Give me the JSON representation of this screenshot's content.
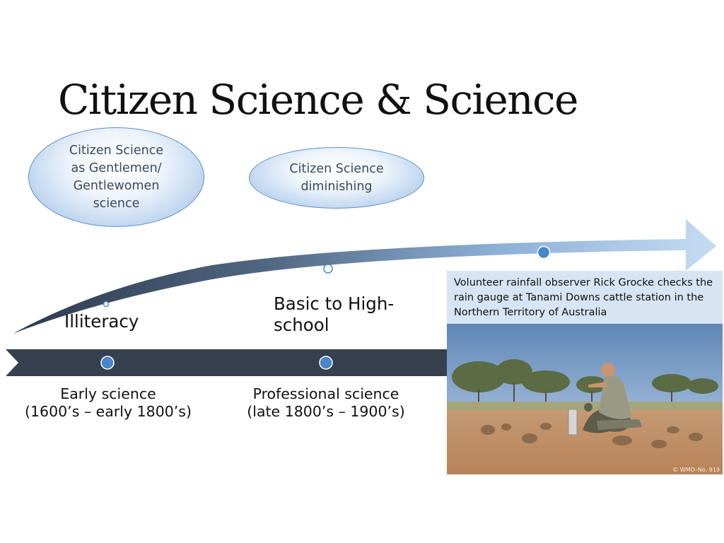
{
  "slide": {
    "title": "Citizen Science & Science",
    "bubbles": [
      {
        "line1": "Citizen Science",
        "line2": "as Gentlemen/",
        "line3": "Gentlewomen",
        "line4": "science"
      },
      {
        "line1": "Citizen Science",
        "line2": "diminishing"
      }
    ],
    "literacy_levels": [
      "Illiteracy",
      "Basic to High-school"
    ],
    "eras": [
      {
        "name": "Early science",
        "period": "(1600’s – early 1800’s)"
      },
      {
        "name": "Professional science",
        "period": "(late 1800’s – 1900’s)"
      }
    ],
    "photo": {
      "caption": "Volunteer rainfall observer Rick Grocke checks the rain gauge at Tanami Downs cattle station in the Northern Territory of Australia",
      "credit": "© WMO–No. 919"
    }
  },
  "colors": {
    "timeline": "#36404f",
    "marker": "#4a86c8",
    "arrow_light": "#c5dcf2",
    "arrow_dark": "#2d3a4d"
  }
}
